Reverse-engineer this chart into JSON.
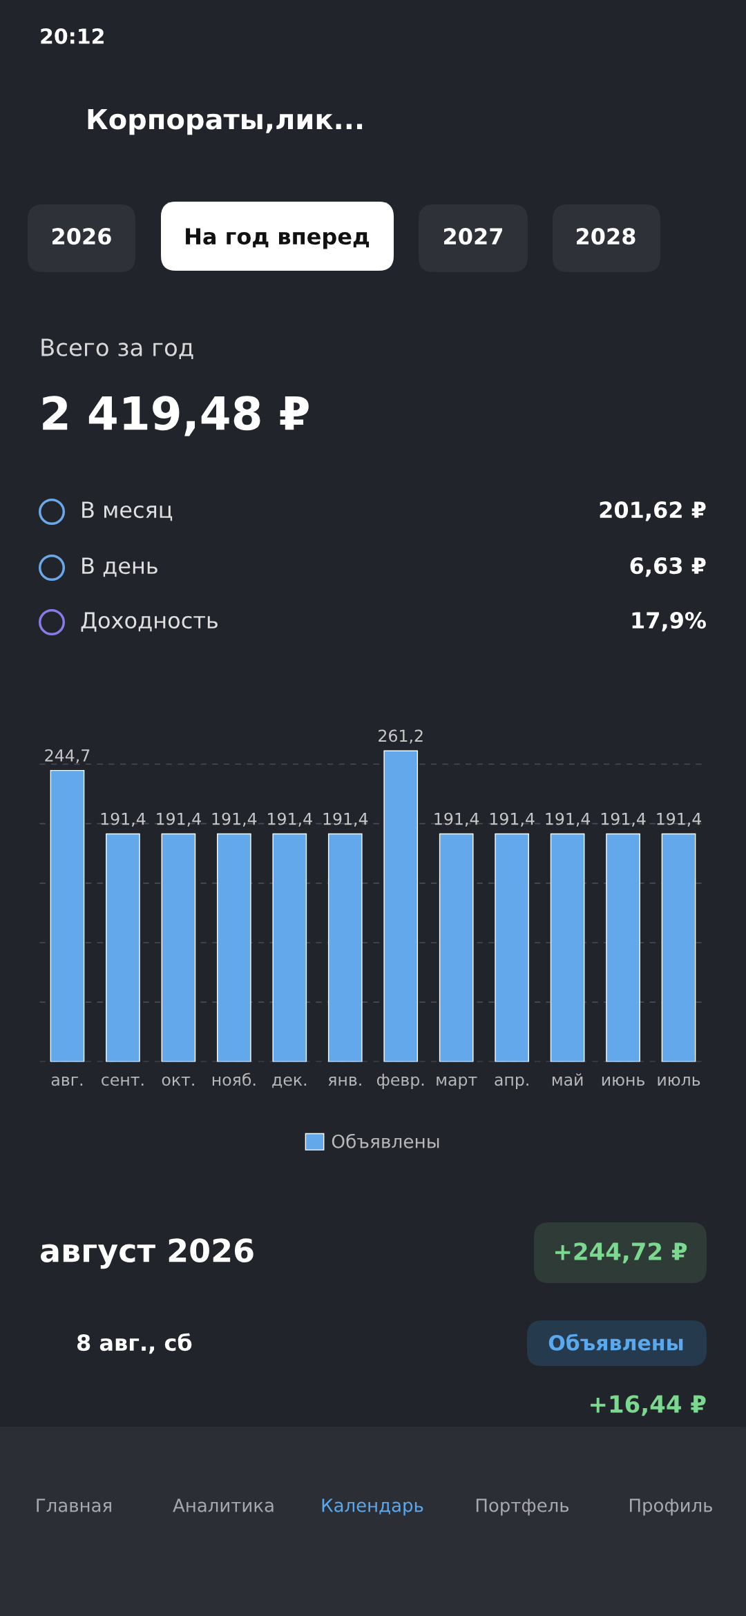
{
  "chart_data": {
    "type": "bar",
    "title": "Всего за год",
    "subtitle": "2 419,48 ₽",
    "annotations": [
      "20:12",
      "Корпораты,лик...",
      "2026",
      "На год вперед",
      "2027",
      "2028",
      "В месяц",
      "201,62 ₽",
      "В день",
      "6,63 ₽",
      "Доходность",
      "17,9%",
      "август 2026",
      "+244,72 ₽",
      "8 авг., сб",
      "Объявлены",
      "+16,44 ₽",
      "Главная",
      "Аналитика",
      "Календарь",
      "Портфель",
      "Профиль"
    ],
    "categories": [
      "авг.",
      "сент.",
      "окт.",
      "нояб.",
      "дек.",
      "янв.",
      "февр.",
      "март",
      "апр.",
      "май",
      "июнь",
      "июль"
    ],
    "series": [
      {
        "name": "Объявлены",
        "color": "#62a8ea",
        "values": [
          244.7,
          191.4,
          191.4,
          191.4,
          191.4,
          191.4,
          261.2,
          191.4,
          191.4,
          191.4,
          191.4,
          191.4
        ],
        "value_labels": [
          "244,7",
          "191,4",
          "191,4",
          "191,4",
          "191,4",
          "191,4",
          "261,2",
          "191,4",
          "191,4",
          "191,4",
          "191,4",
          "191,4"
        ]
      }
    ],
    "grid": "y",
    "legend": "bottom",
    "tick_labels": "x"
  }
}
